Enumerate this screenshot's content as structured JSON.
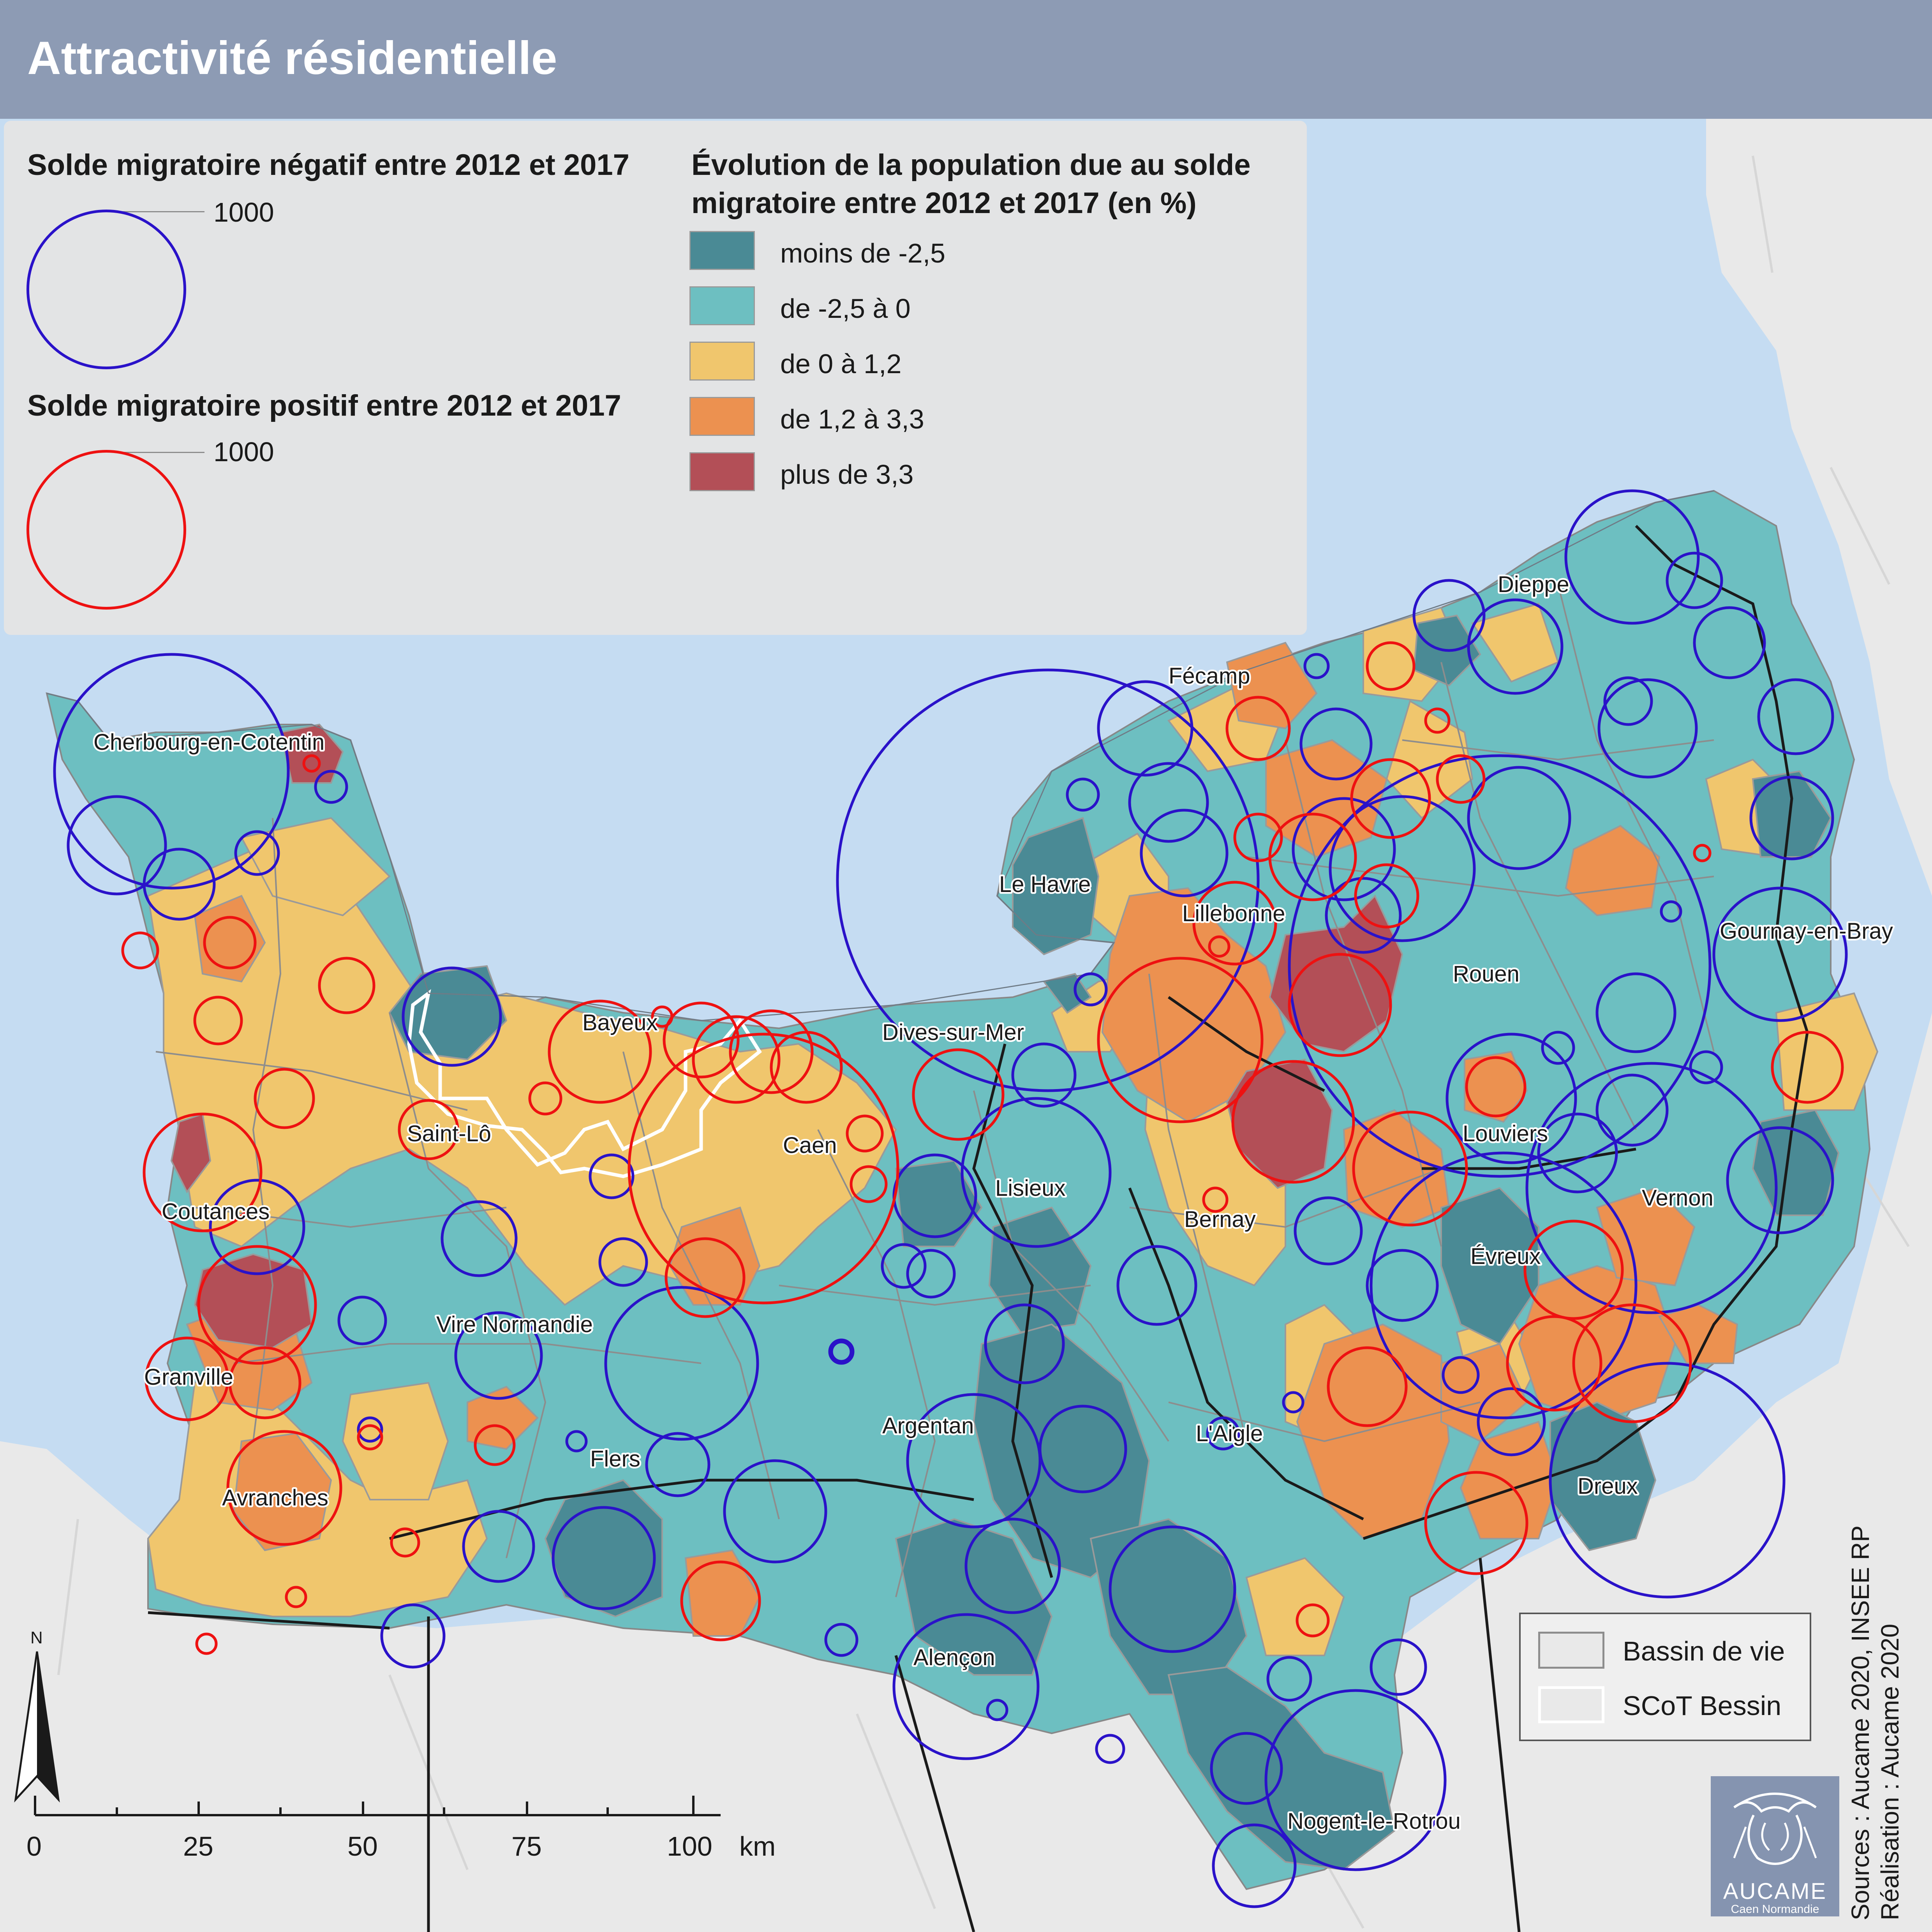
{
  "title": "Attractivité résidentielle",
  "legend": {
    "negative_title": "Solde migratoire négatif entre 2012 et 2017",
    "negative_value": "1000",
    "positive_title": "Solde migratoire positif entre 2012 et 2017",
    "positive_value": "1000",
    "choropleth_title_line1": "Évolution de la population due au solde",
    "choropleth_title_line2": "migratoire entre 2012 et 2017 (en %)",
    "classes": [
      {
        "label": "moins de -2,5",
        "color": "#4a8a95"
      },
      {
        "label": "de -2,5 à 0",
        "color": "#6dbfc1"
      },
      {
        "label": "de 0 à 1,2",
        "color": "#f0c66d"
      },
      {
        "label": "de 1,2 à 3,3",
        "color": "#ec9150"
      },
      {
        "label": "plus de 3,3",
        "color": "#b34f57"
      }
    ],
    "negative_color": "#2a12c9",
    "positive_color": "#ee1111"
  },
  "boundaries": {
    "bassin_label": "Bassin de vie",
    "scot_label": "SCoT Bessin"
  },
  "cities": [
    "Cherbourg-en-Cotentin",
    "Le Havre",
    "Fécamp",
    "Dieppe",
    "Lillebonne",
    "Rouen",
    "Gournay-en-Bray",
    "Bayeux",
    "Dives-sur-Mer",
    "Caen",
    "Saint-Lô",
    "Lisieux",
    "Bernay",
    "Louviers",
    "Vernon",
    "Évreux",
    "Coutances",
    "Vire Normandie",
    "Granville",
    "Flers",
    "Argentan",
    "L'Aigle",
    "Avranches",
    "Dreux",
    "Alençon",
    "Nogent-le-Rotrou"
  ],
  "scale": {
    "ticks": [
      "0",
      "25",
      "50",
      "75",
      "100"
    ],
    "unit": "km"
  },
  "north_label": "N",
  "sources": {
    "line1": "Sources : Aucame 2020, INSEE RP",
    "line2": "Réalisation : Aucame 2020"
  },
  "logo": {
    "name": "AUCAME",
    "sub": "Caen Normandie"
  }
}
